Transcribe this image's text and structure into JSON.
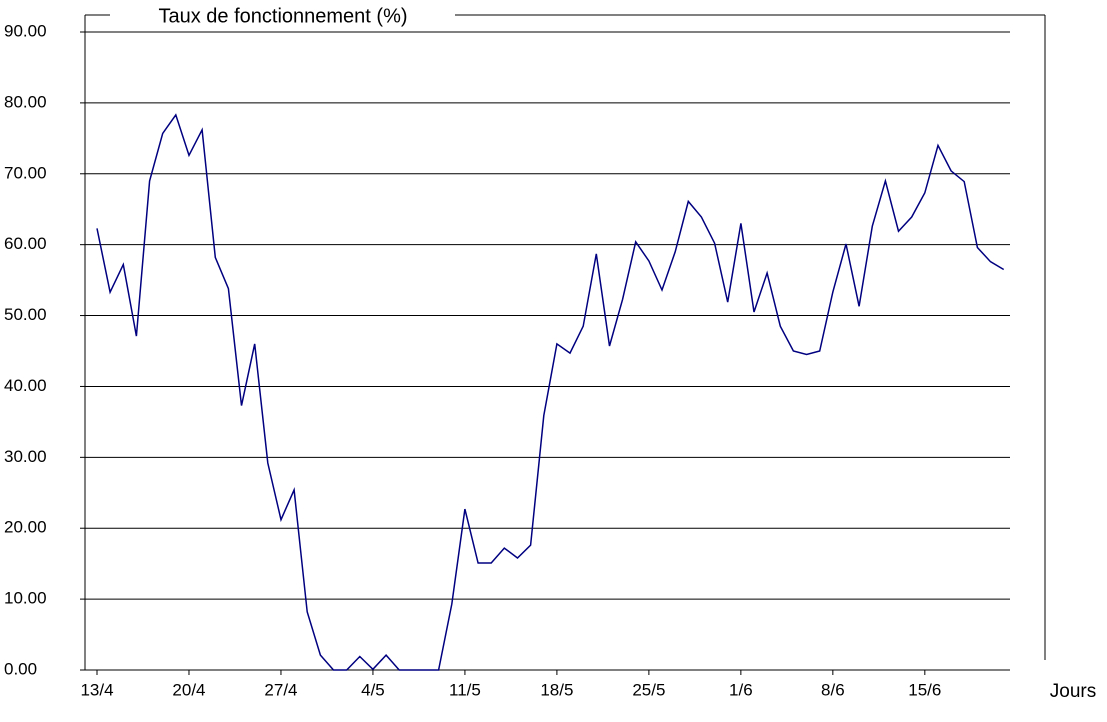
{
  "chart_data": {
    "type": "line",
    "title": "Taux de fonctionnement (%)",
    "x_label": "Jours",
    "categories": [
      "13/4",
      null,
      null,
      null,
      null,
      null,
      null,
      "20/4",
      null,
      null,
      null,
      null,
      null,
      null,
      "27/4",
      null,
      null,
      null,
      null,
      null,
      null,
      "4/5",
      null,
      null,
      null,
      null,
      null,
      null,
      "11/5",
      null,
      null,
      null,
      null,
      null,
      null,
      "18/5",
      null,
      null,
      null,
      null,
      null,
      null,
      "25/5",
      null,
      null,
      null,
      null,
      null,
      null,
      "1/6",
      null,
      null,
      null,
      null,
      null,
      null,
      "8/6",
      null,
      null,
      null,
      null,
      null,
      null,
      "15/6",
      null,
      null,
      null,
      null,
      null,
      null
    ],
    "series": [
      {
        "color": "#000080",
        "values": [
          62.3,
          53.3,
          57.2,
          47.1,
          69,
          75.7,
          78.3,
          72.6,
          76.2,
          58.2,
          53.8,
          37.3,
          46,
          29.2,
          21.2,
          25.4,
          8.2,
          2.1,
          0,
          0,
          1.9,
          0.1,
          2.1,
          0,
          0,
          0,
          0,
          9.3,
          22.7,
          15.1,
          15.1,
          17.2,
          15.8,
          17.6,
          35.9,
          46,
          44.7,
          48.5,
          58.7,
          45.7,
          52.3,
          60.4,
          57.7,
          53.6,
          59,
          66.1,
          63.9,
          60.2,
          51.9,
          63,
          50.5,
          56,
          48.5,
          45,
          44.5,
          45,
          53.3,
          60.1,
          51.3,
          62.6,
          69,
          61.9,
          63.9,
          67.3,
          74,
          70.4,
          68.9,
          59.6,
          57.6,
          56.5
        ]
      }
    ],
    "ylim": [
      0,
      90
    ],
    "yticks": [
      {
        "value": 0,
        "label": "0.00"
      },
      {
        "value": 10,
        "label": "10.00"
      },
      {
        "value": 20,
        "label": "20.00"
      },
      {
        "value": 30,
        "label": "30.00"
      },
      {
        "value": 40,
        "label": "40.00"
      },
      {
        "value": 50,
        "label": "50.00"
      },
      {
        "value": 60,
        "label": "60.00"
      },
      {
        "value": 70,
        "label": "70.00"
      },
      {
        "value": 80,
        "label": "80.00"
      },
      {
        "value": 90,
        "label": "90.00"
      }
    ],
    "grid": true
  }
}
